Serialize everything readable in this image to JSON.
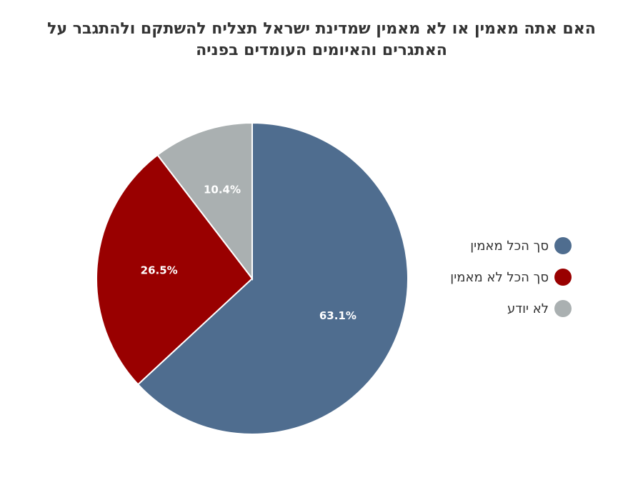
{
  "title": {
    "line1": "האם אתה מאמין או לא מאמין שמדינת ישראל תצליח להשתקם ולהתגבר על",
    "line2": "האתגרים והאיומים העומדים בפניה"
  },
  "chart_data": {
    "type": "pie",
    "title": "האם אתה מאמין או לא מאמין שמדינת ישראל תצליח להשתקם ולהתגבר על האתגרים והאיומים העומדים בפניה",
    "categories": [
      "סך הכל מאמין",
      "סך הכל לא מאמין",
      "לא יודע"
    ],
    "values": [
      63.1,
      26.5,
      10.4
    ],
    "labels": [
      "63.1%",
      "26.5%",
      "10.4%"
    ],
    "colors": [
      "#4f6d8f",
      "#990000",
      "#aab0b1"
    ],
    "legend_position": "right",
    "start": "top, clockwise"
  },
  "legend": {
    "items": [
      {
        "label": "סך הכל מאמין",
        "color": "#4f6d8f"
      },
      {
        "label": "סך הכל לא מאמין",
        "color": "#990000"
      },
      {
        "label": "לא יודע",
        "color": "#aab0b1"
      }
    ]
  }
}
